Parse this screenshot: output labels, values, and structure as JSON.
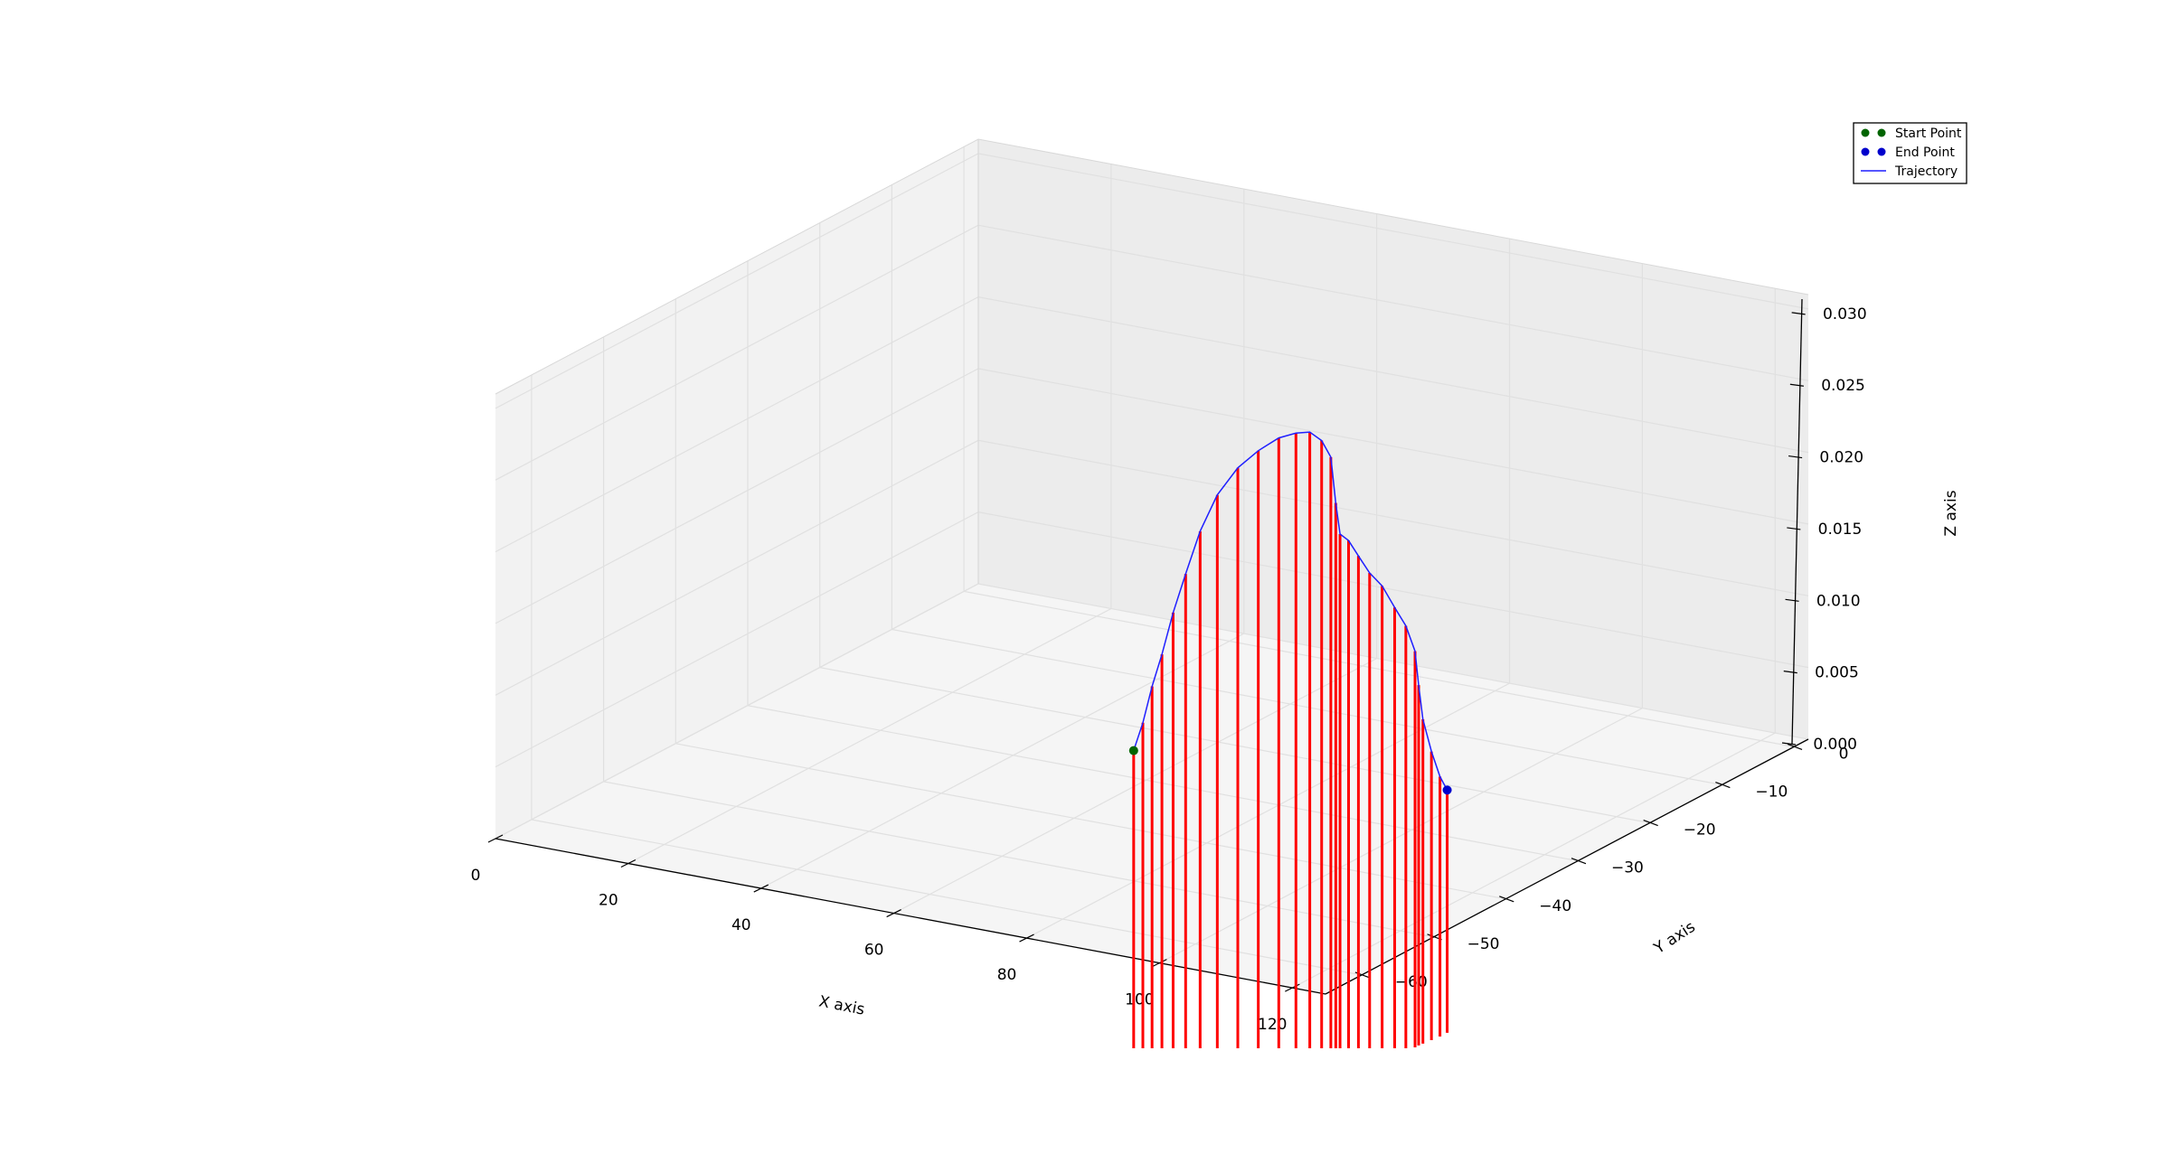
{
  "chart_data": {
    "type": "line",
    "projection": "3d",
    "title": "",
    "xlabel": "X axis",
    "ylabel": "Y axis",
    "zlabel": "Z axis",
    "xlim": [
      0,
      125
    ],
    "ylim": [
      -65,
      2
    ],
    "zlim": [
      0,
      0.031
    ],
    "x_ticks": [
      0,
      20,
      40,
      60,
      80,
      100,
      120
    ],
    "x_tick_labels": [
      "0",
      "20",
      "40",
      "60",
      "80",
      "100",
      "120"
    ],
    "y_ticks": [
      0,
      -10,
      -20,
      -30,
      -40,
      -50,
      -60
    ],
    "y_tick_labels": [
      "0",
      "−10",
      "−20",
      "−30",
      "−40",
      "−50",
      "−60"
    ],
    "z_ticks": [
      0,
      0.005,
      0.01,
      0.015,
      0.02,
      0.025,
      0.03
    ],
    "z_tick_labels": [
      "0.000",
      "0.005",
      "0.010",
      "0.015",
      "0.020",
      "0.025",
      "0.030"
    ],
    "grid": true,
    "legend_position": "top-right",
    "legend": [
      "Start Point",
      "End Point",
      "Trajectory"
    ],
    "colors": {
      "start_point": "#006400",
      "end_point": "#0000cc",
      "trajectory": "#1f1fff",
      "stems": "#ff0000",
      "pane_left": "#f2f2f2",
      "pane_back": "#ececec",
      "pane_floor": "#f5f5f5",
      "grid": "#e0e0e0"
    },
    "start_point": {
      "x": 82,
      "y": -52,
      "z": 0.0098
    },
    "end_point": {
      "x": 101,
      "y": -26,
      "z": 0.0018
    },
    "series": [
      {
        "name": "Trajectory",
        "points": [
          {
            "x": 82,
            "y": -52,
            "z": 0.0098
          },
          {
            "x": 82.3,
            "y": -51,
            "z": 0.0115
          },
          {
            "x": 82.6,
            "y": -50,
            "z": 0.0138
          },
          {
            "x": 83,
            "y": -49,
            "z": 0.0158
          },
          {
            "x": 83.6,
            "y": -48,
            "z": 0.0185
          },
          {
            "x": 84.4,
            "y": -47,
            "z": 0.021
          },
          {
            "x": 85.5,
            "y": -46,
            "z": 0.0238
          },
          {
            "x": 87,
            "y": -45,
            "z": 0.0262
          },
          {
            "x": 89,
            "y": -44,
            "z": 0.028
          },
          {
            "x": 91,
            "y": -43,
            "z": 0.0291
          },
          {
            "x": 93,
            "y": -42,
            "z": 0.0299
          },
          {
            "x": 94.5,
            "y": -41,
            "z": 0.0301
          },
          {
            "x": 95.5,
            "y": -40,
            "z": 0.03
          },
          {
            "x": 96.2,
            "y": -39,
            "z": 0.0292
          },
          {
            "x": 96.5,
            "y": -38,
            "z": 0.0278
          },
          {
            "x": 96.7,
            "y": -37.5,
            "z": 0.0245
          },
          {
            "x": 96.8,
            "y": -37,
            "z": 0.0222
          },
          {
            "x": 97,
            "y": -36,
            "z": 0.0215
          },
          {
            "x": 97.4,
            "y": -35,
            "z": 0.0202
          },
          {
            "x": 98,
            "y": -34,
            "z": 0.0188
          },
          {
            "x": 98.8,
            "y": -33,
            "z": 0.0177
          },
          {
            "x": 99.6,
            "y": -32,
            "z": 0.016
          },
          {
            "x": 100.2,
            "y": -31,
            "z": 0.0145
          },
          {
            "x": 100.5,
            "y": -30,
            "z": 0.0125
          },
          {
            "x": 100.5,
            "y": -29.5,
            "z": 0.01
          },
          {
            "x": 100.6,
            "y": -29,
            "z": 0.0075
          },
          {
            "x": 100.8,
            "y": -28,
            "z": 0.005
          },
          {
            "x": 101,
            "y": -27,
            "z": 0.003
          },
          {
            "x": 101,
            "y": -26,
            "z": 0.0018
          }
        ]
      }
    ]
  },
  "legend": {
    "start_label": "Start Point",
    "end_label": "End Point",
    "trajectory_label": "Trajectory"
  }
}
